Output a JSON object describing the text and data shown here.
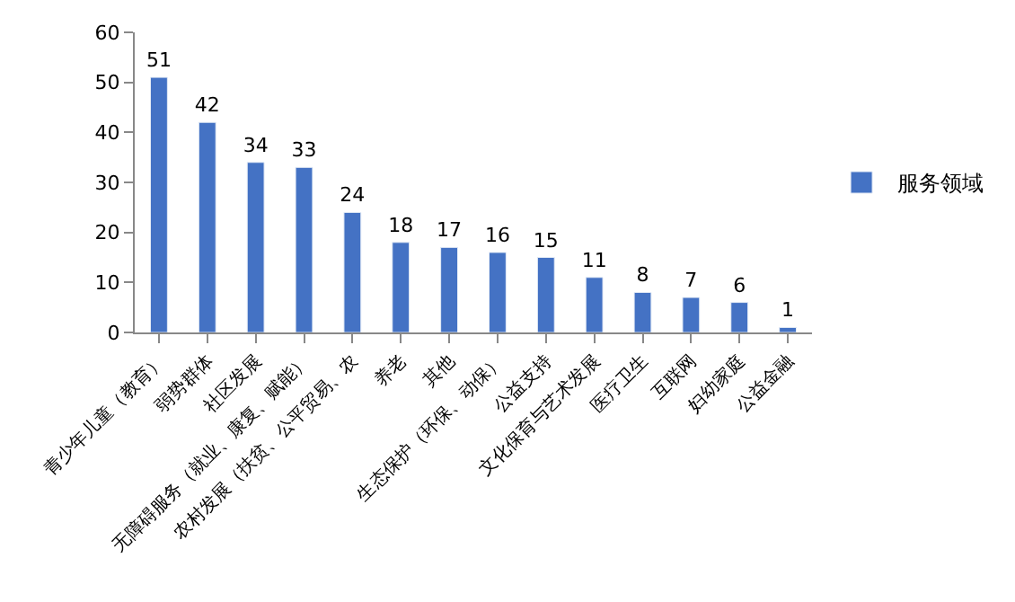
{
  "chart_data": {
    "type": "bar",
    "categories": [
      "青少年儿童（教育）",
      "弱势群体",
      "社区发展",
      "无障碍服务（就业、康复、赋能）",
      "农村发展（扶贫、公平贸易、农",
      "养老",
      "其他",
      "生态保护（环保、动保）",
      "公益支持",
      "文化保育与艺术发展",
      "医疗卫生",
      "互联网",
      "妇幼家庭",
      "公益金融"
    ],
    "series": [
      {
        "name": "服务领域",
        "color": "#4472c4",
        "values": [
          51,
          42,
          34,
          33,
          24,
          18,
          17,
          16,
          15,
          11,
          8,
          7,
          6,
          1
        ]
      }
    ],
    "ylim": [
      0,
      60
    ],
    "yticks": [
      0,
      10,
      20,
      30,
      40,
      50,
      60
    ],
    "legend": "right",
    "data_labels": true
  }
}
